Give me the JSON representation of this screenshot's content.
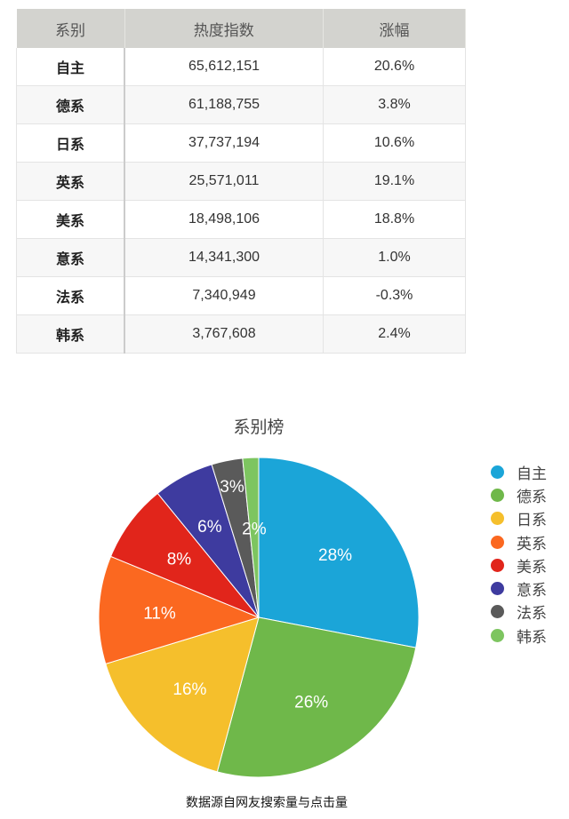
{
  "table": {
    "headers": [
      "系别",
      "热度指数",
      "涨幅"
    ],
    "rows": [
      [
        "自主",
        "65,612,151",
        "20.6%"
      ],
      [
        "德系",
        "61,188,755",
        "3.8%"
      ],
      [
        "日系",
        "37,737,194",
        "10.6%"
      ],
      [
        "英系",
        "25,571,011",
        "19.1%"
      ],
      [
        "美系",
        "18,498,106",
        "18.8%"
      ],
      [
        "意系",
        "14,341,300",
        "1.0%"
      ],
      [
        "法系",
        "7,340,949",
        "-0.3%"
      ],
      [
        "韩系",
        "3,767,608",
        "2.4%"
      ]
    ]
  },
  "chart_data": {
    "type": "pie",
    "title": "系别榜",
    "categories": [
      "自主",
      "德系",
      "日系",
      "英系",
      "美系",
      "意系",
      "法系",
      "韩系"
    ],
    "values": [
      65612151,
      61188755,
      37737194,
      25571011,
      18498106,
      14341300,
      7340949,
      3767608
    ],
    "labels": [
      "28%",
      "26%",
      "16%",
      "11%",
      "8%",
      "6%",
      "3%",
      "2%"
    ],
    "colors": [
      "#1ba5d8",
      "#6fb84a",
      "#f5bf2c",
      "#fb6820",
      "#e1251b",
      "#3e3b9f",
      "#5a5a5a",
      "#7dc560"
    ],
    "legend_position": "right",
    "note": "数据源自网友搜索量与点击量"
  }
}
